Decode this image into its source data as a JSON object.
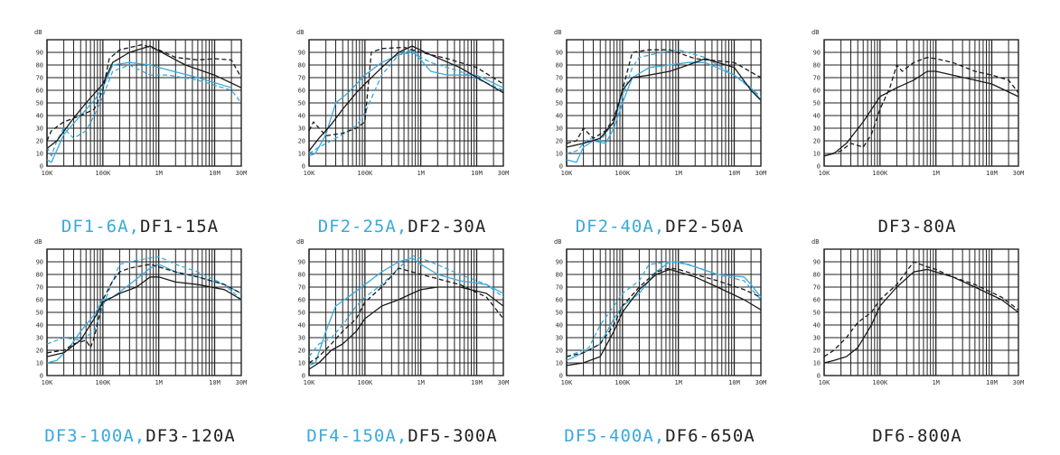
{
  "colors": {
    "blue": "#3aa9dc",
    "black": "#1a1a1a",
    "grid": "#222222"
  },
  "axis": {
    "y_unit": "dB",
    "y_ticks": [
      "0",
      "10",
      "20",
      "30",
      "40",
      "50",
      "60",
      "70",
      "80",
      "90"
    ],
    "x_ticks": [
      "10K",
      "100K",
      "1M",
      "10M",
      "30M"
    ]
  },
  "chart_data": [
    {
      "type": "line",
      "caption_blue": "DF1-6A,",
      "caption_black": "DF1-15A",
      "x_scale": "log",
      "xlim": [
        10000,
        30000000
      ],
      "ylim": [
        0,
        100
      ],
      "grid": true,
      "series": [
        {
          "color": "blue",
          "dash": false,
          "x": [
            10000,
            12000,
            20000,
            40000,
            70000,
            100000,
            150000,
            300000,
            700000,
            1500000,
            5000000,
            20000000
          ],
          "y": [
            5,
            3,
            25,
            40,
            52,
            62,
            80,
            82,
            80,
            76,
            70,
            62
          ]
        },
        {
          "color": "blue",
          "dash": true,
          "x": [
            10000,
            12000,
            15000,
            20000,
            30000,
            50000,
            70000,
            100000,
            150000,
            300000,
            700000,
            1500000,
            5000000,
            20000000,
            30000000
          ],
          "y": [
            15,
            8,
            20,
            30,
            22,
            28,
            40,
            55,
            75,
            80,
            72,
            72,
            68,
            60,
            50
          ]
        },
        {
          "color": "black",
          "dash": false,
          "x": [
            10000,
            15000,
            30000,
            50000,
            100000,
            150000,
            300000,
            700000,
            1500000,
            3000000,
            10000000,
            30000000
          ],
          "y": [
            14,
            20,
            38,
            50,
            65,
            82,
            90,
            95,
            87,
            80,
            72,
            62
          ]
        },
        {
          "color": "black",
          "dash": true,
          "x": [
            10000,
            12000,
            20000,
            40000,
            70000,
            100000,
            130000,
            200000,
            500000,
            1000000,
            2000000,
            5000000,
            10000000,
            20000000,
            30000000
          ],
          "y": [
            20,
            28,
            35,
            40,
            45,
            60,
            85,
            92,
            96,
            92,
            86,
            84,
            85,
            84,
            70
          ]
        }
      ]
    },
    {
      "type": "line",
      "caption_blue": "DF2-25A,",
      "caption_black": "DF2-30A",
      "x_scale": "log",
      "xlim": [
        10000,
        30000000
      ],
      "ylim": [
        0,
        100
      ],
      "grid": true,
      "series": [
        {
          "color": "blue",
          "dash": false,
          "x": [
            10000,
            13000,
            20000,
            30000,
            50000,
            100000,
            200000,
            400000,
            700000,
            1500000,
            3000000,
            10000000,
            30000000
          ],
          "y": [
            8,
            10,
            25,
            50,
            58,
            72,
            82,
            88,
            92,
            75,
            72,
            72,
            62
          ]
        },
        {
          "color": "blue",
          "dash": true,
          "x": [
            10000,
            15000,
            25000,
            40000,
            70000,
            100000,
            200000,
            400000,
            700000,
            1500000,
            5000000,
            30000000
          ],
          "y": [
            10,
            15,
            20,
            25,
            32,
            42,
            72,
            88,
            90,
            82,
            75,
            60
          ]
        },
        {
          "color": "black",
          "dash": false,
          "x": [
            10000,
            15000,
            25000,
            40000,
            70000,
            100000,
            200000,
            400000,
            700000,
            1500000,
            5000000,
            30000000
          ],
          "y": [
            12,
            22,
            33,
            45,
            58,
            65,
            78,
            90,
            95,
            88,
            78,
            58
          ]
        },
        {
          "color": "black",
          "dash": true,
          "x": [
            10000,
            12000,
            20000,
            40000,
            70000,
            100000,
            130000,
            200000,
            500000,
            1000000,
            3000000,
            10000000,
            30000000
          ],
          "y": [
            28,
            35,
            24,
            26,
            30,
            35,
            90,
            93,
            94,
            90,
            85,
            78,
            65
          ]
        }
      ]
    },
    {
      "type": "line",
      "caption_blue": "DF2-40A,",
      "caption_black": "DF2-50A",
      "x_scale": "log",
      "xlim": [
        10000,
        30000000
      ],
      "ylim": [
        0,
        100
      ],
      "grid": true,
      "series": [
        {
          "color": "blue",
          "dash": false,
          "x": [
            10000,
            15000,
            20000,
            30000,
            50000,
            70000,
            100000,
            150000,
            300000,
            700000,
            1500000,
            3000000,
            10000000,
            20000000,
            30000000
          ],
          "y": [
            5,
            3,
            15,
            20,
            18,
            30,
            50,
            70,
            78,
            80,
            82,
            82,
            72,
            62,
            52
          ]
        },
        {
          "color": "blue",
          "dash": true,
          "x": [
            10000,
            15000,
            25000,
            40000,
            70000,
            100000,
            150000,
            200000,
            500000,
            1000000,
            3000000,
            10000000,
            30000000
          ],
          "y": [
            10,
            12,
            22,
            20,
            35,
            55,
            78,
            86,
            90,
            92,
            86,
            72,
            55
          ]
        },
        {
          "color": "black",
          "dash": false,
          "x": [
            10000,
            20000,
            40000,
            70000,
            100000,
            150000,
            300000,
            700000,
            1500000,
            3000000,
            10000000,
            20000000,
            30000000
          ],
          "y": [
            15,
            18,
            22,
            35,
            60,
            70,
            72,
            75,
            80,
            85,
            78,
            60,
            52
          ]
        },
        {
          "color": "black",
          "dash": true,
          "x": [
            10000,
            15000,
            20000,
            30000,
            50000,
            70000,
            100000,
            150000,
            300000,
            700000,
            2000000,
            10000000,
            30000000
          ],
          "y": [
            18,
            20,
            30,
            22,
            28,
            38,
            60,
            90,
            92,
            92,
            85,
            82,
            70
          ]
        }
      ]
    },
    {
      "type": "line",
      "caption_blue": "",
      "caption_black": "DF3-80A",
      "x_scale": "log",
      "xlim": [
        10000,
        30000000
      ],
      "ylim": [
        0,
        100
      ],
      "grid": true,
      "series": [
        {
          "color": "black",
          "dash": false,
          "x": [
            10000,
            15000,
            25000,
            50000,
            100000,
            200000,
            400000,
            700000,
            1000000,
            2000000,
            5000000,
            10000000,
            30000000
          ],
          "y": [
            8,
            10,
            18,
            35,
            55,
            62,
            68,
            75,
            75,
            72,
            68,
            65,
            55
          ]
        },
        {
          "color": "black",
          "dash": true,
          "x": [
            10000,
            20000,
            30000,
            50000,
            70000,
            100000,
            150000,
            200000,
            250000,
            400000,
            700000,
            1000000,
            2000000,
            5000000,
            10000000,
            20000000,
            30000000
          ],
          "y": [
            8,
            12,
            18,
            15,
            25,
            45,
            62,
            80,
            75,
            82,
            86,
            85,
            82,
            75,
            72,
            68,
            58
          ]
        }
      ]
    },
    {
      "type": "line",
      "caption_blue": "DF3-100A,",
      "caption_black": "DF3-120A",
      "x_scale": "log",
      "xlim": [
        10000,
        30000000
      ],
      "ylim": [
        0,
        100
      ],
      "grid": true,
      "series": [
        {
          "color": "blue",
          "dash": false,
          "x": [
            10000,
            15000,
            25000,
            40000,
            70000,
            100000,
            150000,
            300000,
            700000,
            1000000,
            2000000,
            5000000,
            15000000,
            30000000
          ],
          "y": [
            10,
            12,
            22,
            35,
            48,
            60,
            62,
            72,
            85,
            88,
            82,
            78,
            72,
            65
          ]
        },
        {
          "color": "blue",
          "dash": true,
          "x": [
            10000,
            20000,
            40000,
            70000,
            100000,
            150000,
            200000,
            300000,
            700000,
            1000000,
            2000000,
            5000000,
            15000000,
            30000000
          ],
          "y": [
            25,
            30,
            28,
            35,
            55,
            75,
            88,
            90,
            93,
            94,
            88,
            82,
            72,
            60
          ]
        },
        {
          "color": "black",
          "dash": false,
          "x": [
            10000,
            20000,
            40000,
            70000,
            100000,
            200000,
            400000,
            700000,
            1000000,
            2000000,
            5000000,
            15000000,
            30000000
          ],
          "y": [
            15,
            18,
            28,
            45,
            58,
            65,
            70,
            78,
            78,
            74,
            72,
            68,
            60
          ]
        },
        {
          "color": "black",
          "dash": true,
          "x": [
            10000,
            20000,
            30000,
            50000,
            60000,
            70000,
            100000,
            150000,
            200000,
            300000,
            700000,
            1000000,
            2000000,
            5000000,
            15000000,
            30000000
          ],
          "y": [
            18,
            20,
            25,
            28,
            22,
            30,
            60,
            75,
            82,
            85,
            88,
            86,
            82,
            78,
            72,
            65
          ]
        }
      ]
    },
    {
      "type": "line",
      "caption_blue": "DF4-150A,",
      "caption_black": "DF5-300A",
      "x_scale": "log",
      "xlim": [
        10000,
        30000000
      ],
      "ylim": [
        0,
        100
      ],
      "grid": true,
      "series": [
        {
          "color": "blue",
          "dash": false,
          "x": [
            10000,
            13000,
            20000,
            30000,
            50000,
            100000,
            200000,
            400000,
            700000,
            1000000,
            2000000,
            5000000,
            15000000,
            30000000
          ],
          "y": [
            8,
            10,
            35,
            55,
            62,
            72,
            82,
            90,
            93,
            88,
            80,
            75,
            72,
            65
          ]
        },
        {
          "color": "blue",
          "dash": true,
          "x": [
            10000,
            15000,
            25000,
            40000,
            70000,
            100000,
            200000,
            400000,
            700000,
            1500000,
            5000000,
            15000000,
            30000000
          ],
          "y": [
            15,
            25,
            30,
            40,
            55,
            62,
            72,
            85,
            95,
            90,
            80,
            72,
            62
          ]
        },
        {
          "color": "black",
          "dash": false,
          "x": [
            10000,
            15000,
            25000,
            40000,
            70000,
            100000,
            200000,
            400000,
            700000,
            1000000,
            2000000,
            5000000,
            15000000,
            30000000
          ],
          "y": [
            5,
            10,
            20,
            25,
            35,
            45,
            55,
            60,
            65,
            68,
            70,
            70,
            65,
            55
          ]
        },
        {
          "color": "black",
          "dash": true,
          "x": [
            10000,
            15000,
            25000,
            40000,
            70000,
            100000,
            200000,
            400000,
            700000,
            1500000,
            5000000,
            15000000,
            30000000
          ],
          "y": [
            10,
            15,
            25,
            35,
            45,
            58,
            70,
            85,
            82,
            78,
            72,
            62,
            45
          ]
        }
      ]
    },
    {
      "type": "line",
      "caption_blue": "DF5-400A,",
      "caption_black": "DF6-650A",
      "x_scale": "log",
      "xlim": [
        10000,
        30000000
      ],
      "ylim": [
        0,
        100
      ],
      "grid": true,
      "series": [
        {
          "color": "blue",
          "dash": false,
          "x": [
            10000,
            20000,
            40000,
            70000,
            100000,
            200000,
            400000,
            700000,
            1000000,
            2000000,
            5000000,
            15000000,
            20000000,
            30000000
          ],
          "y": [
            12,
            18,
            25,
            45,
            55,
            65,
            82,
            90,
            90,
            86,
            80,
            78,
            72,
            62
          ]
        },
        {
          "color": "blue",
          "dash": true,
          "x": [
            10000,
            15000,
            25000,
            40000,
            70000,
            100000,
            200000,
            300000,
            700000,
            1500000,
            5000000,
            15000000,
            30000000
          ],
          "y": [
            15,
            18,
            22,
            40,
            55,
            65,
            75,
            88,
            90,
            88,
            80,
            75,
            60
          ]
        },
        {
          "color": "black",
          "dash": false,
          "x": [
            10000,
            20000,
            40000,
            70000,
            100000,
            200000,
            400000,
            700000,
            1000000,
            2000000,
            5000000,
            15000000,
            30000000
          ],
          "y": [
            8,
            10,
            15,
            35,
            50,
            68,
            80,
            84,
            82,
            78,
            70,
            60,
            52
          ]
        },
        {
          "color": "black",
          "dash": true,
          "x": [
            10000,
            20000,
            40000,
            70000,
            100000,
            200000,
            400000,
            700000,
            1000000,
            2000000,
            5000000,
            15000000,
            30000000
          ],
          "y": [
            15,
            18,
            25,
            40,
            55,
            70,
            82,
            85,
            84,
            80,
            75,
            68,
            62
          ]
        }
      ]
    },
    {
      "type": "line",
      "caption_blue": "",
      "caption_black": "DF6-800A",
      "x_scale": "log",
      "xlim": [
        10000,
        30000000
      ],
      "ylim": [
        0,
        100
      ],
      "grid": true,
      "series": [
        {
          "color": "black",
          "dash": false,
          "x": [
            10000,
            15000,
            25000,
            40000,
            70000,
            100000,
            200000,
            400000,
            700000,
            1000000,
            2000000,
            5000000,
            15000000,
            30000000
          ],
          "y": [
            10,
            12,
            15,
            22,
            40,
            55,
            70,
            82,
            84,
            82,
            78,
            70,
            60,
            50
          ]
        },
        {
          "color": "black",
          "dash": true,
          "x": [
            10000,
            15000,
            25000,
            40000,
            70000,
            100000,
            200000,
            400000,
            700000,
            1000000,
            2000000,
            5000000,
            15000000,
            30000000
          ],
          "y": [
            15,
            20,
            30,
            42,
            50,
            60,
            72,
            90,
            86,
            84,
            78,
            72,
            62,
            52
          ]
        }
      ]
    }
  ]
}
